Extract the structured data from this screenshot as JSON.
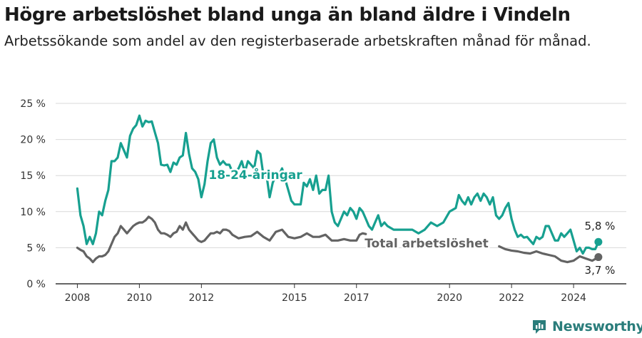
{
  "title": "Högre arbetslöshet bland unga än bland äldre i Vindeln",
  "subtitle": "Arbetssökande som andel av den registerbaserade arbetskraften månad för månad.",
  "brand": "Newsworthy",
  "chart_data": {
    "type": "line",
    "ylim": [
      0,
      25
    ],
    "xlim": [
      2007.3,
      2025.7
    ],
    "y_ticks": [
      0,
      5,
      10,
      15,
      20,
      25
    ],
    "y_tick_labels": [
      "0 %",
      "5 %",
      "10 %",
      "15 %",
      "20 %",
      "25 %"
    ],
    "x_ticks": [
      2008,
      2010,
      2012,
      2015,
      2017,
      2020,
      2022,
      2024
    ],
    "x_tick_labels": [
      "2008",
      "2010",
      "2012",
      "2015",
      "2017",
      "2020",
      "2022",
      "2024"
    ],
    "grid": true,
    "end_labels": [
      "5,8 %",
      "3,7 %"
    ],
    "series": [
      {
        "name": "18-24-åringar",
        "color": "#17a090",
        "points": [
          [
            2008.0,
            13.2
          ],
          [
            2008.1,
            9.5
          ],
          [
            2008.2,
            8.0
          ],
          [
            2008.3,
            5.5
          ],
          [
            2008.4,
            6.5
          ],
          [
            2008.5,
            5.5
          ],
          [
            2008.6,
            7.0
          ],
          [
            2008.7,
            10.0
          ],
          [
            2008.8,
            9.5
          ],
          [
            2008.9,
            11.5
          ],
          [
            2009.0,
            13.0
          ],
          [
            2009.1,
            17.0
          ],
          [
            2009.2,
            17.0
          ],
          [
            2009.3,
            17.5
          ],
          [
            2009.4,
            19.5
          ],
          [
            2009.5,
            18.5
          ],
          [
            2009.6,
            17.5
          ],
          [
            2009.7,
            20.5
          ],
          [
            2009.8,
            21.5
          ],
          [
            2009.9,
            22.0
          ],
          [
            2010.0,
            23.3
          ],
          [
            2010.1,
            21.8
          ],
          [
            2010.2,
            22.6
          ],
          [
            2010.3,
            22.4
          ],
          [
            2010.4,
            22.5
          ],
          [
            2010.5,
            21.0
          ],
          [
            2010.6,
            19.5
          ],
          [
            2010.7,
            16.5
          ],
          [
            2010.8,
            16.4
          ],
          [
            2010.9,
            16.5
          ],
          [
            2011.0,
            15.5
          ],
          [
            2011.1,
            16.8
          ],
          [
            2011.2,
            16.5
          ],
          [
            2011.3,
            17.5
          ],
          [
            2011.4,
            17.8
          ],
          [
            2011.5,
            20.9
          ],
          [
            2011.6,
            18.0
          ],
          [
            2011.7,
            16.0
          ],
          [
            2011.8,
            15.5
          ],
          [
            2011.9,
            14.5
          ],
          [
            2012.0,
            12.0
          ],
          [
            2012.1,
            13.8
          ],
          [
            2012.2,
            17.0
          ],
          [
            2012.3,
            19.5
          ],
          [
            2012.4,
            20.0
          ],
          [
            2012.5,
            17.5
          ],
          [
            2012.6,
            16.5
          ],
          [
            2012.7,
            17.0
          ],
          [
            2012.8,
            16.5
          ],
          [
            2012.9,
            16.5
          ],
          [
            2013.0,
            15.5
          ],
          [
            2013.1,
            15.5
          ],
          [
            2013.2,
            16.0
          ],
          [
            2013.3,
            17.0
          ],
          [
            2013.4,
            15.5
          ],
          [
            2013.5,
            17.0
          ],
          [
            2013.6,
            16.5
          ],
          [
            2013.7,
            16.0
          ],
          [
            2013.8,
            18.4
          ],
          [
            2013.9,
            18.0
          ],
          [
            2014.0,
            15.0
          ],
          [
            2014.1,
            15.0
          ],
          [
            2014.2,
            12.0
          ],
          [
            2014.3,
            14.0
          ],
          [
            2014.4,
            15.0
          ],
          [
            2014.5,
            15.0
          ],
          [
            2014.6,
            16.0
          ],
          [
            2014.7,
            14.5
          ],
          [
            2014.8,
            13.0
          ],
          [
            2014.9,
            11.5
          ],
          [
            2015.0,
            11.0
          ],
          [
            2015.1,
            11.0
          ],
          [
            2015.2,
            11.0
          ],
          [
            2015.3,
            14.0
          ],
          [
            2015.4,
            13.5
          ],
          [
            2015.5,
            14.5
          ],
          [
            2015.6,
            13.0
          ],
          [
            2015.7,
            15.0
          ],
          [
            2015.8,
            12.5
          ],
          [
            2015.9,
            13.0
          ],
          [
            2016.0,
            13.0
          ],
          [
            2016.1,
            15.0
          ],
          [
            2016.2,
            10.0
          ],
          [
            2016.3,
            8.5
          ],
          [
            2016.4,
            8.0
          ],
          [
            2016.5,
            9.0
          ],
          [
            2016.6,
            10.0
          ],
          [
            2016.7,
            9.5
          ],
          [
            2016.8,
            10.5
          ],
          [
            2016.9,
            10.0
          ],
          [
            2017.0,
            9.0
          ],
          [
            2017.1,
            10.5
          ],
          [
            2017.2,
            10.0
          ],
          [
            2017.3,
            9.0
          ],
          [
            2017.4,
            8.0
          ],
          [
            2017.5,
            7.5
          ],
          [
            2017.6,
            8.5
          ],
          [
            2017.7,
            9.5
          ],
          [
            2017.8,
            8.0
          ],
          [
            2017.9,
            8.5
          ],
          [
            2018.0,
            8.0
          ],
          [
            2018.2,
            7.5
          ],
          [
            2018.4,
            7.5
          ],
          [
            2018.6,
            7.5
          ],
          [
            2018.8,
            7.5
          ],
          [
            2019.0,
            7.0
          ],
          [
            2019.2,
            7.5
          ],
          [
            2019.4,
            8.5
          ],
          [
            2019.6,
            8.0
          ],
          [
            2019.8,
            8.5
          ],
          [
            2020.0,
            10.0
          ],
          [
            2020.2,
            10.5
          ],
          [
            2020.3,
            12.3
          ],
          [
            2020.4,
            11.5
          ],
          [
            2020.5,
            11.0
          ],
          [
            2020.6,
            12.0
          ],
          [
            2020.7,
            11.0
          ],
          [
            2020.8,
            12.0
          ],
          [
            2020.9,
            12.5
          ],
          [
            2021.0,
            11.5
          ],
          [
            2021.1,
            12.5
          ],
          [
            2021.2,
            12.0
          ],
          [
            2021.3,
            11.0
          ],
          [
            2021.4,
            12.0
          ],
          [
            2021.5,
            9.5
          ],
          [
            2021.6,
            9.0
          ],
          [
            2021.7,
            9.5
          ],
          [
            2021.8,
            10.5
          ],
          [
            2021.9,
            11.2
          ],
          [
            2022.0,
            9.0
          ],
          [
            2022.1,
            7.5
          ],
          [
            2022.2,
            6.5
          ],
          [
            2022.3,
            6.8
          ],
          [
            2022.4,
            6.4
          ],
          [
            2022.5,
            6.5
          ],
          [
            2022.6,
            6.0
          ],
          [
            2022.7,
            5.5
          ],
          [
            2022.8,
            6.5
          ],
          [
            2022.9,
            6.2
          ],
          [
            2023.0,
            6.5
          ],
          [
            2023.1,
            8.0
          ],
          [
            2023.2,
            8.0
          ],
          [
            2023.3,
            7.0
          ],
          [
            2023.4,
            6.0
          ],
          [
            2023.5,
            6.0
          ],
          [
            2023.6,
            7.0
          ],
          [
            2023.7,
            6.5
          ],
          [
            2023.8,
            7.0
          ],
          [
            2023.9,
            7.5
          ],
          [
            2024.0,
            6.0
          ],
          [
            2024.1,
            4.5
          ],
          [
            2024.2,
            5.0
          ],
          [
            2024.3,
            4.2
          ],
          [
            2024.4,
            5.0
          ],
          [
            2024.5,
            5.0
          ],
          [
            2024.6,
            4.8
          ],
          [
            2024.7,
            4.8
          ],
          [
            2024.8,
            5.8
          ]
        ]
      },
      {
        "name": "Total arbetslöshet",
        "color": "#636363",
        "points": [
          [
            2008.0,
            5.0
          ],
          [
            2008.1,
            4.7
          ],
          [
            2008.2,
            4.5
          ],
          [
            2008.3,
            3.8
          ],
          [
            2008.4,
            3.5
          ],
          [
            2008.5,
            3.0
          ],
          [
            2008.6,
            3.5
          ],
          [
            2008.7,
            3.8
          ],
          [
            2008.8,
            3.8
          ],
          [
            2008.9,
            4.0
          ],
          [
            2009.0,
            4.5
          ],
          [
            2009.1,
            5.5
          ],
          [
            2009.2,
            6.5
          ],
          [
            2009.3,
            7.0
          ],
          [
            2009.4,
            8.0
          ],
          [
            2009.5,
            7.5
          ],
          [
            2009.6,
            7.0
          ],
          [
            2009.7,
            7.5
          ],
          [
            2009.8,
            8.0
          ],
          [
            2009.9,
            8.3
          ],
          [
            2010.0,
            8.5
          ],
          [
            2010.1,
            8.5
          ],
          [
            2010.2,
            8.8
          ],
          [
            2010.3,
            9.3
          ],
          [
            2010.4,
            9.0
          ],
          [
            2010.5,
            8.5
          ],
          [
            2010.6,
            7.5
          ],
          [
            2010.7,
            7.0
          ],
          [
            2010.8,
            7.0
          ],
          [
            2010.9,
            6.8
          ],
          [
            2011.0,
            6.5
          ],
          [
            2011.1,
            7.0
          ],
          [
            2011.2,
            7.2
          ],
          [
            2011.3,
            8.0
          ],
          [
            2011.4,
            7.5
          ],
          [
            2011.5,
            8.5
          ],
          [
            2011.6,
            7.5
          ],
          [
            2011.7,
            7.0
          ],
          [
            2011.8,
            6.5
          ],
          [
            2011.9,
            6.0
          ],
          [
            2012.0,
            5.8
          ],
          [
            2012.1,
            6.0
          ],
          [
            2012.2,
            6.5
          ],
          [
            2012.3,
            7.0
          ],
          [
            2012.4,
            7.0
          ],
          [
            2012.5,
            7.2
          ],
          [
            2012.6,
            7.0
          ],
          [
            2012.7,
            7.5
          ],
          [
            2012.8,
            7.5
          ],
          [
            2012.9,
            7.3
          ],
          [
            2013.0,
            6.8
          ],
          [
            2013.2,
            6.3
          ],
          [
            2013.4,
            6.5
          ],
          [
            2013.6,
            6.6
          ],
          [
            2013.8,
            7.2
          ],
          [
            2014.0,
            6.5
          ],
          [
            2014.2,
            6.0
          ],
          [
            2014.4,
            7.2
          ],
          [
            2014.6,
            7.5
          ],
          [
            2014.8,
            6.5
          ],
          [
            2015.0,
            6.3
          ],
          [
            2015.2,
            6.5
          ],
          [
            2015.4,
            7.0
          ],
          [
            2015.6,
            6.5
          ],
          [
            2015.8,
            6.5
          ],
          [
            2016.0,
            6.8
          ],
          [
            2016.2,
            6.0
          ],
          [
            2016.4,
            6.0
          ],
          [
            2016.6,
            6.2
          ],
          [
            2016.8,
            6.0
          ],
          [
            2017.0,
            6.0
          ],
          [
            2017.1,
            6.8
          ],
          [
            2017.2,
            7.0
          ],
          [
            2017.3,
            6.9
          ],
          [
            2021.6,
            5.2
          ],
          [
            2021.8,
            4.8
          ],
          [
            2022.0,
            4.6
          ],
          [
            2022.2,
            4.5
          ],
          [
            2022.4,
            4.3
          ],
          [
            2022.6,
            4.2
          ],
          [
            2022.8,
            4.5
          ],
          [
            2023.0,
            4.2
          ],
          [
            2023.2,
            4.0
          ],
          [
            2023.4,
            3.8
          ],
          [
            2023.6,
            3.2
          ],
          [
            2023.8,
            3.0
          ],
          [
            2024.0,
            3.2
          ],
          [
            2024.2,
            3.8
          ],
          [
            2024.4,
            3.5
          ],
          [
            2024.6,
            3.2
          ],
          [
            2024.8,
            3.7
          ]
        ]
      }
    ]
  }
}
